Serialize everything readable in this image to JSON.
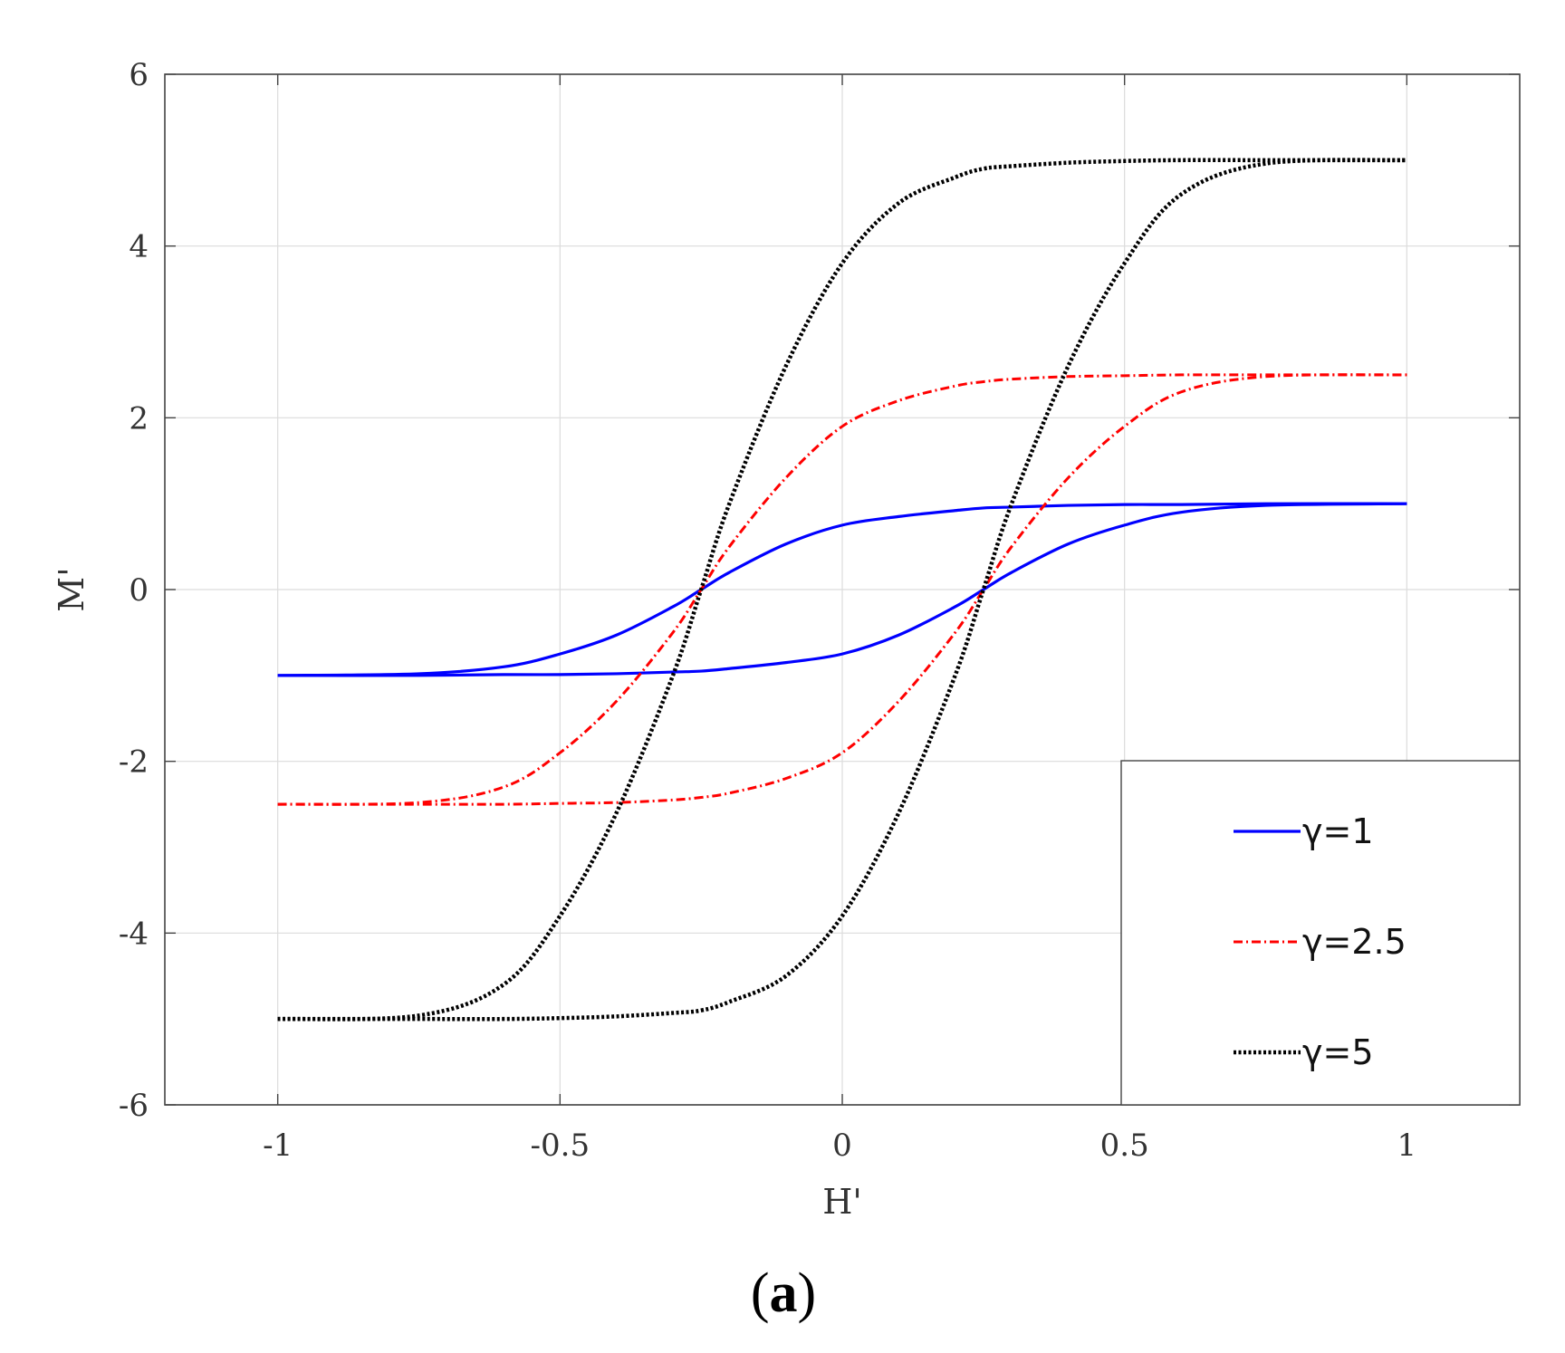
{
  "chart_data": {
    "type": "line",
    "xlabel": "H'",
    "ylabel": "M'",
    "xlim": [
      -1.2,
      1.2
    ],
    "ylim": [
      -6,
      6
    ],
    "xticks": [
      -1,
      -0.5,
      0,
      0.5,
      1
    ],
    "xtick_labels": [
      "-1",
      "-0.5",
      "0",
      "0.5",
      "1"
    ],
    "yticks": [
      -6,
      -4,
      -2,
      0,
      2,
      4,
      6
    ],
    "ytick_labels": [
      "-6",
      "-4",
      "-2",
      "0",
      "2",
      "4",
      "6"
    ],
    "grid": true,
    "legend_position": "bottom-right",
    "colors": {
      "grid": "#dcdcdc",
      "axes": "#444444"
    },
    "series": [
      {
        "name": "γ=1",
        "gamma": 1,
        "color": "#0000ff",
        "style": "solid",
        "x": [
          -1,
          -0.75,
          -0.6,
          -0.5,
          -0.4,
          -0.3,
          -0.25,
          -0.2,
          -0.1,
          0,
          0.1,
          0.2,
          0.25,
          0.3,
          0.4,
          0.5,
          0.6,
          0.75,
          1
        ],
        "ascending": [
          -1,
          -1,
          -0.99,
          -0.99,
          -0.98,
          -0.96,
          -0.95,
          -0.92,
          -0.85,
          -0.75,
          -0.53,
          -0.2,
          0,
          0.2,
          0.53,
          0.75,
          0.9,
          0.98,
          1
        ],
        "descending": [
          -1,
          -0.98,
          -0.9,
          -0.75,
          -0.53,
          -0.2,
          0,
          0.2,
          0.53,
          0.75,
          0.85,
          0.92,
          0.95,
          0.96,
          0.98,
          0.99,
          0.99,
          1,
          1
        ]
      },
      {
        "name": "γ=2.5",
        "gamma": 2.5,
        "color": "#ff0000",
        "style": "dashdot",
        "x": [
          -1,
          -0.75,
          -0.6,
          -0.5,
          -0.4,
          -0.3,
          -0.25,
          -0.2,
          -0.1,
          0,
          0.1,
          0.2,
          0.25,
          0.3,
          0.4,
          0.5,
          0.6,
          0.75,
          1
        ],
        "ascending": [
          -2.5,
          -2.5,
          -2.5,
          -2.49,
          -2.48,
          -2.45,
          -2.42,
          -2.37,
          -2.2,
          -1.9,
          -1.3,
          -0.5,
          0,
          0.5,
          1.3,
          1.9,
          2.3,
          2.48,
          2.5
        ],
        "descending": [
          -2.5,
          -2.48,
          -2.3,
          -1.9,
          -1.3,
          -0.5,
          0,
          0.5,
          1.3,
          1.9,
          2.2,
          2.37,
          2.42,
          2.45,
          2.48,
          2.49,
          2.5,
          2.5,
          2.5
        ]
      },
      {
        "name": "γ=5",
        "gamma": 5,
        "color": "#000000",
        "style": "dotted",
        "x": [
          -1,
          -0.75,
          -0.6,
          -0.5,
          -0.4,
          -0.3,
          -0.25,
          -0.2,
          -0.1,
          0,
          0.1,
          0.2,
          0.25,
          0.3,
          0.4,
          0.5,
          0.6,
          0.75,
          1
        ],
        "ascending": [
          -5,
          -5,
          -5,
          -4.99,
          -4.97,
          -4.93,
          -4.9,
          -4.8,
          -4.5,
          -3.8,
          -2.6,
          -1,
          0,
          1,
          2.6,
          3.8,
          4.6,
          4.96,
          5
        ],
        "descending": [
          -5,
          -4.96,
          -4.6,
          -3.8,
          -2.6,
          -1,
          0,
          1,
          2.6,
          3.8,
          4.5,
          4.8,
          4.9,
          4.93,
          4.97,
          4.99,
          5,
          5,
          5
        ]
      }
    ]
  },
  "figure": {
    "caption_open": "(",
    "caption_letter": "a",
    "caption_close": ")"
  }
}
